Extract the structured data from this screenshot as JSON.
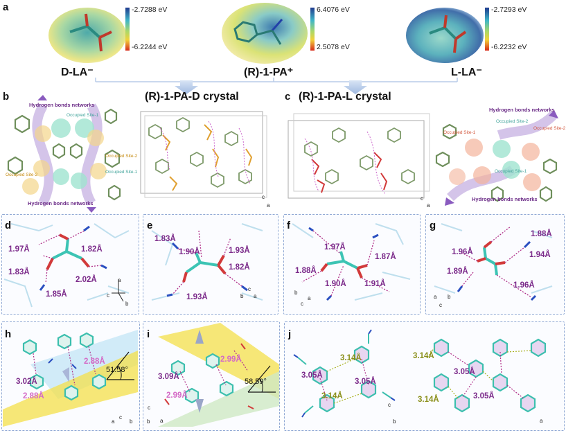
{
  "panel_labels": {
    "a": "a",
    "b": "b",
    "c": "c",
    "d": "d",
    "e": "e",
    "f": "f",
    "g": "g",
    "h": "h",
    "i": "i",
    "j": "j"
  },
  "panel_a": {
    "molecules": [
      {
        "label": "D-LA⁻",
        "colorbar_max": "-2.7288 eV",
        "colorbar_min": "-6.2244 eV"
      },
      {
        "label": "(R)-1-PA⁺",
        "colorbar_max": "6.4076 eV",
        "colorbar_min": "2.5078 eV"
      },
      {
        "label": "L-LA⁻",
        "colorbar_max": "-2.7293 eV",
        "colorbar_min": "-6.2232 eV"
      }
    ]
  },
  "panel_b": {
    "crystal_title": "(R)-1-PA-D crystal",
    "hb_top": "Hydrogen bonds networks",
    "hb_bottom": "Hydrogen bonds networks",
    "occupied_site1": "Occupied Site-1",
    "occupied_site2": "Occupied Site-2",
    "occupied_site2b": "Occupied Site-2",
    "occupied_site1b": "Occupied Site-1",
    "axis_c": "c",
    "axis_a": "a"
  },
  "panel_c": {
    "crystal_title": "(R)-1-PA-L crystal",
    "hb_top": "Hydrogen bonds networks",
    "hb_bottom": "Hydrogen bonds networks",
    "occupied_site2a": "Occupied Site-2",
    "occupied_site1a": "Occupied Site-1",
    "occupied_site2b": "Occupied Site-2",
    "occupied_site1b": "Occupied Site-1",
    "axis_c": "c",
    "axis_a": "a"
  },
  "panel_d": {
    "d1": "1.97Å",
    "d2": "1.82Å",
    "d3": "1.83Å",
    "d4": "2.02Å",
    "d5": "1.85Å",
    "ax_a": "a",
    "ax_b": "b",
    "ax_c": "c"
  },
  "panel_e": {
    "d1": "1.83Å",
    "d2": "1.90Å",
    "d3": "1.93Å",
    "d4": "1.82Å",
    "d5": "1.93Å",
    "ax_a": "a",
    "ax_b": "b",
    "ax_c": "c"
  },
  "panel_f": {
    "d1": "1.97Å",
    "d2": "1.87Å",
    "d3": "1.88Å",
    "d4": "1.90Å",
    "d5": "1.91Å",
    "ax_a": "a",
    "ax_b": "b",
    "ax_c": "c"
  },
  "panel_g": {
    "d1": "1.88Å",
    "d2": "1.96Å",
    "d3": "1.94Å",
    "d4": "1.89Å",
    "d5": "1.96Å",
    "ax_a": "a",
    "ax_b": "b",
    "ax_c": "c"
  },
  "panel_h": {
    "d1": "2.88Å",
    "d2": "3.02Å",
    "d3": "2.88Å",
    "angle": "51.58°",
    "ax_a": "a",
    "ax_b": "b",
    "ax_c": "c"
  },
  "panel_i": {
    "d1": "2.99Å",
    "d2": "3.09Å",
    "d3": "2.99Å",
    "angle": "58.59°",
    "ax_a": "a",
    "ax_b": "b",
    "ax_c": "c"
  },
  "panel_j": {
    "d1": "3.14Å",
    "d2": "3.05Å",
    "d3": "3.05Å",
    "d4": "3.14Å",
    "d5": "3.14Å",
    "d6": "3.05Å",
    "d7": "3.14Å",
    "d8": "3.05Å",
    "ax_a": "a",
    "ax_b": "b",
    "ax_c": "c"
  },
  "colors": {
    "purple": "#7b2a8a",
    "pink": "#d46ac6",
    "olive": "#8a8f1a",
    "teal": "#3fc1b0",
    "dash": "#8fa8d4",
    "yellow": "#f4e04a",
    "lightblue": "#bfe4f5",
    "lightgreen": "#cfe9c4"
  }
}
